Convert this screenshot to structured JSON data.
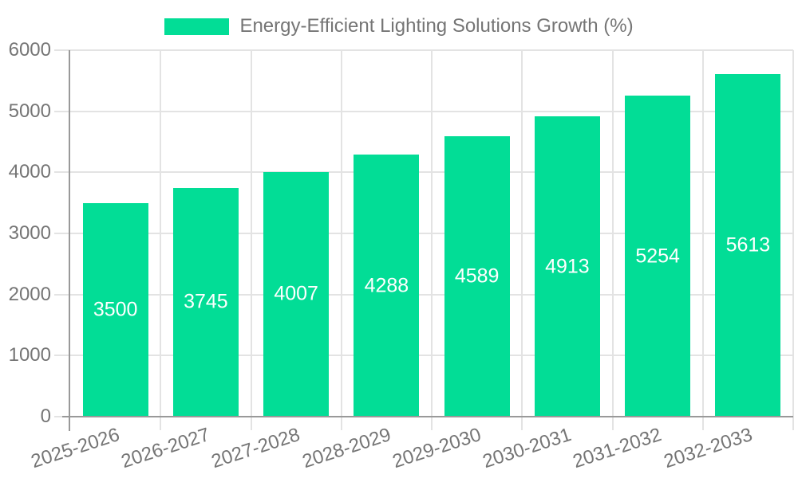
{
  "chart_data": {
    "type": "bar",
    "categories": [
      "2025-2026",
      "2026-2027",
      "2027-2028",
      "2028-2029",
      "2029-2030",
      "2030-2031",
      "2031-2032",
      "2032-2033"
    ],
    "series": [
      {
        "name": "Energy-Efficient Lighting Solutions Growth (%)",
        "values": [
          3500,
          3745,
          4007,
          4288,
          4589,
          4913,
          5254,
          5613
        ]
      }
    ],
    "ylim": [
      0,
      6000
    ],
    "yticks": [
      0,
      1000,
      2000,
      3000,
      4000,
      5000,
      6000
    ],
    "grid": true,
    "legend_position": "top-center",
    "bar_labels_position": "inside-center",
    "colors": {
      "bar": "#02DD96",
      "grid_line": "#E3E3E3",
      "axis_line": "#999999",
      "label_text": "#757575",
      "bar_label_text": "#FFFFFF",
      "background": "#FFFFFF"
    }
  }
}
